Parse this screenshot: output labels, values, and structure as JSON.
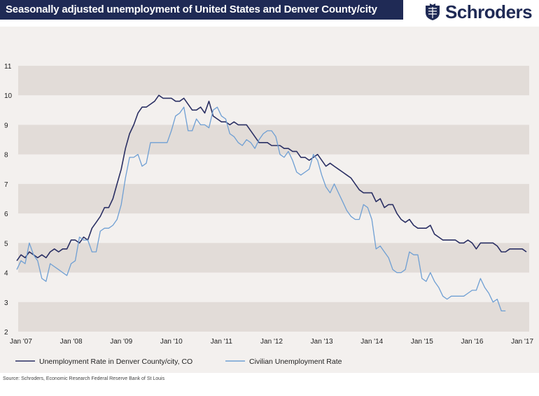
{
  "header": {
    "title": "Seasonally adjusted unemployment of United States and Denver County/city",
    "logo_text": "Schroders"
  },
  "source": "Source: Schroders, Economic Research Federal Reserve Bank of St Louis",
  "colors": {
    "title_bg": "#1f2a55",
    "panel_bg": "#f3f0ee",
    "band": "#e2dcd8",
    "denver": "#2a2f63",
    "us": "#6f9fd3"
  },
  "chart_data": {
    "type": "line",
    "title": "Seasonally adjusted unemployment of United States and Denver County/city",
    "x_tick_labels": [
      "Jan '07",
      "Jan '08",
      "Jan '09",
      "Jan '10",
      "Jan '11",
      "Jan '12",
      "Jan '13",
      "Jan '14",
      "Jan '15",
      "Jan '16",
      "Jan '17"
    ],
    "y_tick_labels": [
      "2",
      "3",
      "4",
      "5",
      "6",
      "7",
      "8",
      "9",
      "10",
      "11"
    ],
    "ylim": [
      2,
      11
    ],
    "xlim": [
      "2006-12",
      "2017-03"
    ],
    "grid": "alternating horizontal bands",
    "legend_position": "bottom",
    "series": [
      {
        "name": "Unemployment Rate in Denver County/city, CO",
        "color": "#2a2f63",
        "points": [
          [
            "2006-12",
            4.4
          ],
          [
            "2007-01",
            4.6
          ],
          [
            "2007-02",
            4.5
          ],
          [
            "2007-03",
            4.7
          ],
          [
            "2007-04",
            4.6
          ],
          [
            "2007-05",
            4.5
          ],
          [
            "2007-06",
            4.6
          ],
          [
            "2007-07",
            4.5
          ],
          [
            "2007-08",
            4.7
          ],
          [
            "2007-09",
            4.8
          ],
          [
            "2007-10",
            4.7
          ],
          [
            "2007-11",
            4.8
          ],
          [
            "2007-12",
            4.8
          ],
          [
            "2008-01",
            5.1
          ],
          [
            "2008-02",
            5.1
          ],
          [
            "2008-03",
            5.0
          ],
          [
            "2008-04",
            5.2
          ],
          [
            "2008-05",
            5.1
          ],
          [
            "2008-06",
            5.5
          ],
          [
            "2008-07",
            5.7
          ],
          [
            "2008-08",
            5.9
          ],
          [
            "2008-09",
            6.2
          ],
          [
            "2008-10",
            6.2
          ],
          [
            "2008-11",
            6.5
          ],
          [
            "2008-12",
            7.0
          ],
          [
            "2009-01",
            7.5
          ],
          [
            "2009-02",
            8.2
          ],
          [
            "2009-03",
            8.7
          ],
          [
            "2009-04",
            9.0
          ],
          [
            "2009-05",
            9.4
          ],
          [
            "2009-06",
            9.6
          ],
          [
            "2009-07",
            9.6
          ],
          [
            "2009-08",
            9.7
          ],
          [
            "2009-09",
            9.8
          ],
          [
            "2009-10",
            10.0
          ],
          [
            "2009-11",
            9.9
          ],
          [
            "2009-12",
            9.9
          ],
          [
            "2010-01",
            9.9
          ],
          [
            "2010-02",
            9.8
          ],
          [
            "2010-03",
            9.8
          ],
          [
            "2010-04",
            9.9
          ],
          [
            "2010-05",
            9.7
          ],
          [
            "2010-06",
            9.5
          ],
          [
            "2010-07",
            9.5
          ],
          [
            "2010-08",
            9.6
          ],
          [
            "2010-09",
            9.4
          ],
          [
            "2010-10",
            9.8
          ],
          [
            "2010-11",
            9.3
          ],
          [
            "2010-12",
            9.2
          ],
          [
            "2011-01",
            9.1
          ],
          [
            "2011-02",
            9.1
          ],
          [
            "2011-03",
            9.0
          ],
          [
            "2011-04",
            9.1
          ],
          [
            "2011-05",
            9.0
          ],
          [
            "2011-06",
            9.0
          ],
          [
            "2011-07",
            9.0
          ],
          [
            "2011-08",
            8.8
          ],
          [
            "2011-09",
            8.6
          ],
          [
            "2011-10",
            8.4
          ],
          [
            "2011-11",
            8.4
          ],
          [
            "2011-12",
            8.4
          ],
          [
            "2012-01",
            8.3
          ],
          [
            "2012-02",
            8.3
          ],
          [
            "2012-03",
            8.3
          ],
          [
            "2012-04",
            8.2
          ],
          [
            "2012-05",
            8.2
          ],
          [
            "2012-06",
            8.1
          ],
          [
            "2012-07",
            8.1
          ],
          [
            "2012-08",
            7.9
          ],
          [
            "2012-09",
            7.9
          ],
          [
            "2012-10",
            7.8
          ],
          [
            "2012-11",
            7.9
          ],
          [
            "2012-12",
            8.0
          ],
          [
            "2013-01",
            7.8
          ],
          [
            "2013-02",
            7.6
          ],
          [
            "2013-03",
            7.7
          ],
          [
            "2013-04",
            7.6
          ],
          [
            "2013-05",
            7.5
          ],
          [
            "2013-06",
            7.4
          ],
          [
            "2013-07",
            7.3
          ],
          [
            "2013-08",
            7.2
          ],
          [
            "2013-09",
            7.0
          ],
          [
            "2013-10",
            6.8
          ],
          [
            "2013-11",
            6.7
          ],
          [
            "2013-12",
            6.7
          ],
          [
            "2014-01",
            6.7
          ],
          [
            "2014-02",
            6.4
          ],
          [
            "2014-03",
            6.5
          ],
          [
            "2014-04",
            6.2
          ],
          [
            "2014-05",
            6.3
          ],
          [
            "2014-06",
            6.3
          ],
          [
            "2014-07",
            6.0
          ],
          [
            "2014-08",
            5.8
          ],
          [
            "2014-09",
            5.7
          ],
          [
            "2014-10",
            5.8
          ],
          [
            "2014-11",
            5.6
          ],
          [
            "2014-12",
            5.5
          ],
          [
            "2015-01",
            5.5
          ],
          [
            "2015-02",
            5.5
          ],
          [
            "2015-03",
            5.6
          ],
          [
            "2015-04",
            5.3
          ],
          [
            "2015-05",
            5.2
          ],
          [
            "2015-06",
            5.1
          ],
          [
            "2015-07",
            5.1
          ],
          [
            "2015-08",
            5.1
          ],
          [
            "2015-09",
            5.1
          ],
          [
            "2015-10",
            5.0
          ],
          [
            "2015-11",
            5.0
          ],
          [
            "2015-12",
            5.1
          ],
          [
            "2016-01",
            5.0
          ],
          [
            "2016-02",
            4.8
          ],
          [
            "2016-03",
            5.0
          ],
          [
            "2016-04",
            5.0
          ],
          [
            "2016-05",
            5.0
          ],
          [
            "2016-06",
            5.0
          ],
          [
            "2016-07",
            4.9
          ],
          [
            "2016-08",
            4.7
          ],
          [
            "2016-09",
            4.7
          ],
          [
            "2016-10",
            4.8
          ],
          [
            "2016-11",
            4.8
          ],
          [
            "2016-12",
            4.8
          ],
          [
            "2017-01",
            4.8
          ],
          [
            "2017-02",
            4.7
          ]
        ]
      },
      {
        "name": "Civilian Unemployment Rate",
        "color": "#6f9fd3",
        "points": [
          [
            "2006-12",
            4.1
          ],
          [
            "2007-01",
            4.4
          ],
          [
            "2007-02",
            4.3
          ],
          [
            "2007-03",
            5.0
          ],
          [
            "2007-04",
            4.6
          ],
          [
            "2007-05",
            4.4
          ],
          [
            "2007-06",
            3.8
          ],
          [
            "2007-07",
            3.7
          ],
          [
            "2007-08",
            4.3
          ],
          [
            "2007-09",
            4.2
          ],
          [
            "2007-10",
            4.1
          ],
          [
            "2007-11",
            4.0
          ],
          [
            "2007-12",
            3.9
          ],
          [
            "2008-01",
            4.3
          ],
          [
            "2008-02",
            4.4
          ],
          [
            "2008-03",
            5.2
          ],
          [
            "2008-04",
            5.1
          ],
          [
            "2008-05",
            5.1
          ],
          [
            "2008-06",
            4.7
          ],
          [
            "2008-07",
            4.7
          ],
          [
            "2008-08",
            5.4
          ],
          [
            "2008-09",
            5.5
          ],
          [
            "2008-10",
            5.5
          ],
          [
            "2008-11",
            5.6
          ],
          [
            "2008-12",
            5.8
          ],
          [
            "2009-01",
            6.3
          ],
          [
            "2009-02",
            7.2
          ],
          [
            "2009-03",
            7.9
          ],
          [
            "2009-04",
            7.9
          ],
          [
            "2009-05",
            8.0
          ],
          [
            "2009-06",
            7.6
          ],
          [
            "2009-07",
            7.7
          ],
          [
            "2009-08",
            8.4
          ],
          [
            "2009-09",
            8.4
          ],
          [
            "2009-10",
            8.4
          ],
          [
            "2009-11",
            8.4
          ],
          [
            "2009-12",
            8.4
          ],
          [
            "2010-01",
            8.8
          ],
          [
            "2010-02",
            9.3
          ],
          [
            "2010-03",
            9.4
          ],
          [
            "2010-04",
            9.6
          ],
          [
            "2010-05",
            8.8
          ],
          [
            "2010-06",
            8.8
          ],
          [
            "2010-07",
            9.2
          ],
          [
            "2010-08",
            9.0
          ],
          [
            "2010-09",
            9.0
          ],
          [
            "2010-10",
            8.9
          ],
          [
            "2010-11",
            9.5
          ],
          [
            "2010-12",
            9.6
          ],
          [
            "2011-01",
            9.3
          ],
          [
            "2011-02",
            9.2
          ],
          [
            "2011-03",
            8.7
          ],
          [
            "2011-04",
            8.6
          ],
          [
            "2011-05",
            8.4
          ],
          [
            "2011-06",
            8.3
          ],
          [
            "2011-07",
            8.5
          ],
          [
            "2011-08",
            8.4
          ],
          [
            "2011-09",
            8.2
          ],
          [
            "2011-10",
            8.5
          ],
          [
            "2011-11",
            8.7
          ],
          [
            "2011-12",
            8.8
          ],
          [
            "2012-01",
            8.8
          ],
          [
            "2012-02",
            8.6
          ],
          [
            "2012-03",
            8.0
          ],
          [
            "2012-04",
            7.9
          ],
          [
            "2012-05",
            8.1
          ],
          [
            "2012-06",
            7.8
          ],
          [
            "2012-07",
            7.4
          ],
          [
            "2012-08",
            7.3
          ],
          [
            "2012-09",
            7.4
          ],
          [
            "2012-10",
            7.5
          ],
          [
            "2012-11",
            8.0
          ],
          [
            "2012-12",
            7.8
          ],
          [
            "2013-01",
            7.3
          ],
          [
            "2013-02",
            6.9
          ],
          [
            "2013-03",
            6.7
          ],
          [
            "2013-04",
            7.0
          ],
          [
            "2013-05",
            6.7
          ],
          [
            "2013-06",
            6.4
          ],
          [
            "2013-07",
            6.1
          ],
          [
            "2013-08",
            5.9
          ],
          [
            "2013-09",
            5.8
          ],
          [
            "2013-10",
            5.8
          ],
          [
            "2013-11",
            6.3
          ],
          [
            "2013-12",
            6.2
          ],
          [
            "2014-01",
            5.8
          ],
          [
            "2014-02",
            4.8
          ],
          [
            "2014-03",
            4.9
          ],
          [
            "2014-04",
            4.7
          ],
          [
            "2014-05",
            4.5
          ],
          [
            "2014-06",
            4.1
          ],
          [
            "2014-07",
            4.0
          ],
          [
            "2014-08",
            4.0
          ],
          [
            "2014-09",
            4.1
          ],
          [
            "2014-10",
            4.7
          ],
          [
            "2014-11",
            4.6
          ],
          [
            "2014-12",
            4.6
          ],
          [
            "2015-01",
            3.8
          ],
          [
            "2015-02",
            3.7
          ],
          [
            "2015-03",
            4.0
          ],
          [
            "2015-04",
            3.7
          ],
          [
            "2015-05",
            3.5
          ],
          [
            "2015-06",
            3.2
          ],
          [
            "2015-07",
            3.1
          ],
          [
            "2015-08",
            3.2
          ],
          [
            "2015-09",
            3.2
          ],
          [
            "2015-10",
            3.2
          ],
          [
            "2015-11",
            3.2
          ],
          [
            "2015-12",
            3.3
          ],
          [
            "2016-01",
            3.4
          ],
          [
            "2016-02",
            3.4
          ],
          [
            "2016-03",
            3.8
          ],
          [
            "2016-04",
            3.5
          ],
          [
            "2016-05",
            3.3
          ],
          [
            "2016-06",
            3.0
          ],
          [
            "2016-07",
            3.1
          ],
          [
            "2016-08",
            2.7
          ],
          [
            "2016-09",
            2.7
          ]
        ]
      }
    ]
  }
}
